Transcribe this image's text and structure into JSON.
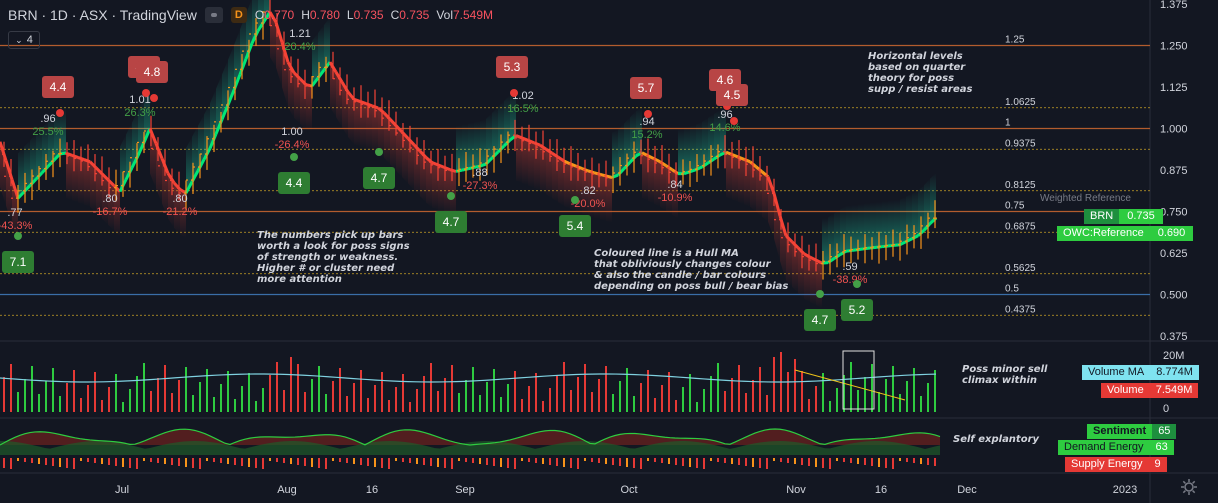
{
  "header": {
    "symbol": "BRN · 1D · ASX · TradingView",
    "interval_badge": "D",
    "o_label": "O",
    "o_value": "0.770",
    "h_label": "H",
    "h_value": "0.780",
    "l_label": "L",
    "l_value": "0.735",
    "c_label": "C",
    "c_value": "0.735",
    "vol_label": "Vol",
    "vol_value": "7.549M",
    "collapse_count": "4"
  },
  "colors": {
    "background": "#131722",
    "bull": "#26a69a",
    "bear": "#ef5350",
    "hull_up": "#4caf50",
    "hull_down": "#f44336",
    "quarter_line": "#c9a227",
    "level_line": "#b35c2e",
    "ma_line": "#7fd1e0",
    "sentiment_green": "#2ecc40",
    "supply_red": "#e53935"
  },
  "price_axis": {
    "ticks": [
      "1.375",
      "1.250",
      "1.125",
      "1.000",
      "0.875",
      "0.750",
      "0.625",
      "0.500",
      "0.375"
    ],
    "ymin": 0.375,
    "ymax": 1.375
  },
  "quarter_levels": [
    {
      "label": "1.25",
      "value": 1.25
    },
    {
      "label": "1.0625",
      "value": 1.0625
    },
    {
      "label": "1",
      "value": 1.0
    },
    {
      "label": "0.9375",
      "value": 0.9375
    },
    {
      "label": "0.8125",
      "value": 0.8125
    },
    {
      "label": "0.75",
      "value": 0.75
    },
    {
      "label": "0.6875",
      "value": 0.6875
    },
    {
      "label": "0.5625",
      "value": 0.5625
    },
    {
      "label": "0.5",
      "value": 0.5
    },
    {
      "label": "0.4375",
      "value": 0.4375
    }
  ],
  "weighted_reference_label": "Weighted Reference",
  "price_tags": [
    {
      "name": "BRN",
      "value": "0.735"
    },
    {
      "name": "OWC:Reference",
      "value": "0.690"
    }
  ],
  "volume_axis": {
    "top_label": "20M",
    "bottom_label": "0",
    "max_millions": 20
  },
  "volume_tags": [
    {
      "name": "Volume MA",
      "value": "8.774M"
    },
    {
      "name": "Volume",
      "value": "7.549M"
    }
  ],
  "energy_tags": [
    {
      "name": "Sentiment",
      "value": "65"
    },
    {
      "name": "Demand Energy",
      "value": "63"
    },
    {
      "name": "Supply Energy",
      "value": "9"
    }
  ],
  "time_axis": [
    "Jul",
    "Aug",
    "16",
    "Sep",
    "Oct",
    "Nov",
    "16",
    "Dec",
    "2023"
  ],
  "notes": {
    "quarter": [
      "Horizontal levels",
      "based on quarter",
      "theory for poss",
      "supp / resist areas"
    ],
    "numbers": [
      "The numbers pick up bars",
      "worth a look for poss signs",
      "of strength or weakness.",
      "Higher # or cluster need",
      "more attention"
    ],
    "hull": [
      "Coloured line is a Hull MA",
      "that obliviously changes colour",
      "& also the candle / bar colours",
      "depending on poss bull / bear bias"
    ],
    "sell": [
      "Poss minor sell",
      "climax within"
    ],
    "self": [
      "Self explantory"
    ]
  },
  "chart_data": [
    {
      "type": "candlestick",
      "title": "BRN · 1D · ASX",
      "ylim": [
        0.375,
        1.375
      ],
      "x_labels": [
        "Jul",
        "Aug",
        "16",
        "Sep",
        "Oct",
        "Nov",
        "16",
        "Dec",
        "2023"
      ],
      "pivot_labels": [
        {
          "price": ".77",
          "change": "-43.3%",
          "type": "low"
        },
        {
          "price": ".96",
          "change": "25.5%",
          "type": "high"
        },
        {
          "price": ".80",
          "change": "-16.7%",
          "type": "low"
        },
        {
          "price": "1.01",
          "change": "26.3%",
          "type": "high"
        },
        {
          "price": ".80",
          "change": "-21.2%",
          "type": "low"
        },
        {
          "price": "1.21",
          "change": "20.4%",
          "type": "high"
        },
        {
          "price": "1.00",
          "change": "-26.4%",
          "type": "low"
        },
        {
          "price": ".88",
          "change": "-27.3%",
          "type": "low"
        },
        {
          "price": "1.02",
          "change": "16.5%",
          "type": "high"
        },
        {
          "price": ".82",
          "change": "-20.0%",
          "type": "low"
        },
        {
          "price": ".94",
          "change": "15.2%",
          "type": "high"
        },
        {
          "price": ".84",
          "change": "-10.9%",
          "type": "low"
        },
        {
          "price": ".96",
          "change": "14.6%",
          "type": "high"
        },
        {
          "price": ".59",
          "change": "-38.9%",
          "type": "low"
        }
      ],
      "signal_badges_red": [
        "4.4",
        "4.5",
        "4.8",
        "5.3",
        "5.7",
        "4.6",
        "4.5"
      ],
      "signal_badges_green": [
        "7.1",
        "4.4",
        "4.7",
        "4.7",
        "5.4",
        "4.7",
        "5.2"
      ]
    },
    {
      "type": "bar",
      "title": "Volume",
      "series": [
        {
          "name": "Volume MA",
          "last": 8.774
        },
        {
          "name": "Volume",
          "last": 7.549
        }
      ]
    },
    {
      "type": "area",
      "title": "Sentiment",
      "series": [
        {
          "name": "Sentiment",
          "last": 65
        },
        {
          "name": "Demand Energy",
          "last": 63
        },
        {
          "name": "Supply Energy",
          "last": 9
        }
      ]
    }
  ]
}
